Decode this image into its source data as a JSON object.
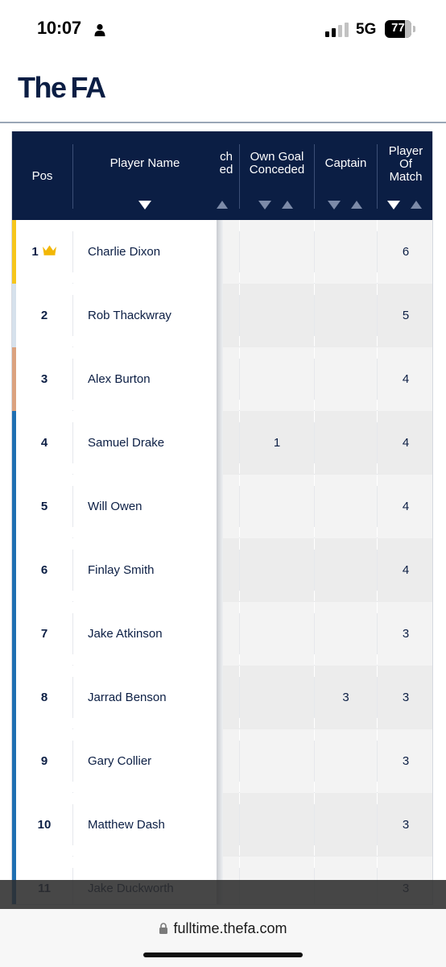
{
  "status_bar": {
    "time": "10:07",
    "network": "5G",
    "battery": "77",
    "icons": [
      "person-icon",
      "signal-bars-icon",
      "battery-icon"
    ]
  },
  "site": {
    "logo_part1": "The",
    "logo_part2": "FA"
  },
  "table": {
    "columns": {
      "pos": "Pos",
      "player_name": "Player Name",
      "partial_line1": "ch",
      "partial_line2": "ed",
      "own_goal_line1": "Own Goal",
      "own_goal_line2": "Conceded",
      "captain": "Captain",
      "potm_line1": "Player",
      "potm_line2": "Of",
      "potm_line3": "Match"
    },
    "rows": [
      {
        "pos": "1",
        "name": "Charlie Dixon",
        "own_goal": "",
        "captain": "",
        "potm": "6",
        "bar_color": "#f6c61b",
        "crown": true
      },
      {
        "pos": "2",
        "name": "Rob Thackwray",
        "own_goal": "",
        "captain": "",
        "potm": "5",
        "bar_color": "#d6e1ec"
      },
      {
        "pos": "3",
        "name": "Alex Burton",
        "own_goal": "",
        "captain": "",
        "potm": "4",
        "bar_color": "#dba27f"
      },
      {
        "pos": "4",
        "name": "Samuel Drake",
        "own_goal": "1",
        "captain": "",
        "potm": "4",
        "bar_color": "#1f6fb2"
      },
      {
        "pos": "5",
        "name": "Will Owen",
        "own_goal": "",
        "captain": "",
        "potm": "4",
        "bar_color": "#1f6fb2"
      },
      {
        "pos": "6",
        "name": "Finlay Smith",
        "own_goal": "",
        "captain": "",
        "potm": "4",
        "bar_color": "#1f6fb2"
      },
      {
        "pos": "7",
        "name": "Jake Atkinson",
        "own_goal": "",
        "captain": "",
        "potm": "3",
        "bar_color": "#1f6fb2"
      },
      {
        "pos": "8",
        "name": "Jarrad Benson",
        "own_goal": "",
        "captain": "3",
        "potm": "3",
        "bar_color": "#1f6fb2"
      },
      {
        "pos": "9",
        "name": "Gary Collier",
        "own_goal": "",
        "captain": "",
        "potm": "3",
        "bar_color": "#1f6fb2"
      },
      {
        "pos": "10",
        "name": "Matthew Dash",
        "own_goal": "",
        "captain": "",
        "potm": "3",
        "bar_color": "#1f6fb2"
      },
      {
        "pos": "11",
        "name": "Jake Duckworth",
        "own_goal": "",
        "captain": "",
        "potm": "3",
        "bar_color": "#1f6fb2"
      }
    ]
  },
  "browser": {
    "url": "fulltime.thefa.com"
  }
}
